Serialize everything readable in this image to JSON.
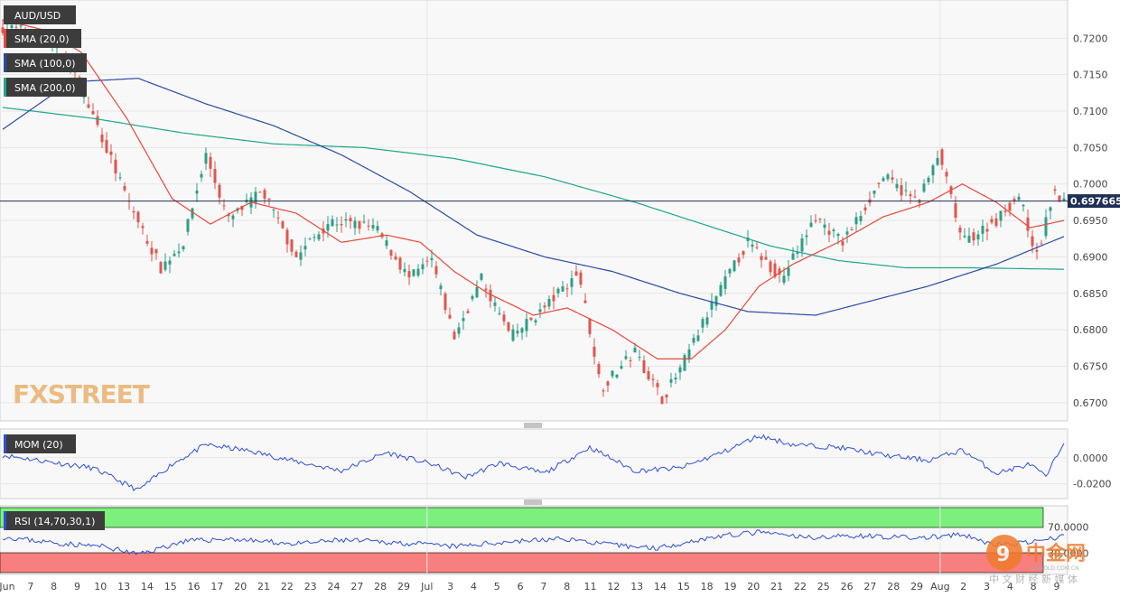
{
  "colors": {
    "background": "#f8f8f8",
    "grid": "#e6e6e6",
    "bull": "#2e9e86",
    "bear": "#e0554d",
    "sma20": "#e8473b",
    "sma100": "#2a4aa6",
    "sma200": "#1fa68a",
    "line": "#2f4fd8",
    "price_tag_bg": "#1f2f55",
    "rsi_over": "#7cf07c",
    "rsi_under": "#f77f7f"
  },
  "chart_data": [
    {
      "type": "candlestick",
      "symbol": "AUD/USD",
      "legend": [
        "AUD/USD",
        "SMA (20,0)",
        "SMA (100,0)",
        "SMA (200,0)"
      ],
      "y_ticks": [
        "0.7200",
        "0.7150",
        "0.7100",
        "0.7050",
        "0.7000",
        "0.6950",
        "0.6900",
        "0.6850",
        "0.6800",
        "0.6750",
        "0.6700"
      ],
      "ylim": [
        0.668,
        0.7245
      ],
      "last_price": "0.697665",
      "last_price_value": 0.697665,
      "x_labels": [
        "Jun",
        "7",
        "8",
        "9",
        "10",
        "13",
        "14",
        "15",
        "16",
        "17",
        "20",
        "21",
        "22",
        "23",
        "24",
        "27",
        "28",
        "29",
        "Jul",
        "3",
        "4",
        "5",
        "6",
        "7",
        "8",
        "11",
        "12",
        "13",
        "14",
        "15",
        "18",
        "19",
        "20",
        "21",
        "22",
        "25",
        "26",
        "27",
        "28",
        "29",
        "Aug",
        "2",
        "3",
        "4",
        "8",
        "9"
      ],
      "price_path": [
        {
          "i": 0,
          "v": 0.7215
        },
        {
          "i": 18,
          "v": 0.7205
        },
        {
          "i": 30,
          "v": 0.716
        },
        {
          "i": 42,
          "v": 0.708
        },
        {
          "i": 55,
          "v": 0.698
        },
        {
          "i": 70,
          "v": 0.6885
        },
        {
          "i": 80,
          "v": 0.692
        },
        {
          "i": 90,
          "v": 0.704
        },
        {
          "i": 100,
          "v": 0.695
        },
        {
          "i": 115,
          "v": 0.699
        },
        {
          "i": 130,
          "v": 0.69
        },
        {
          "i": 145,
          "v": 0.695
        },
        {
          "i": 165,
          "v": 0.694
        },
        {
          "i": 180,
          "v": 0.687
        },
        {
          "i": 190,
          "v": 0.6895
        },
        {
          "i": 200,
          "v": 0.679
        },
        {
          "i": 212,
          "v": 0.687
        },
        {
          "i": 225,
          "v": 0.679
        },
        {
          "i": 240,
          "v": 0.683
        },
        {
          "i": 255,
          "v": 0.688
        },
        {
          "i": 265,
          "v": 0.672
        },
        {
          "i": 280,
          "v": 0.677
        },
        {
          "i": 292,
          "v": 0.6705
        },
        {
          "i": 300,
          "v": 0.6745
        },
        {
          "i": 315,
          "v": 0.684
        },
        {
          "i": 330,
          "v": 0.692
        },
        {
          "i": 345,
          "v": 0.687
        },
        {
          "i": 360,
          "v": 0.6955
        },
        {
          "i": 372,
          "v": 0.692
        },
        {
          "i": 390,
          "v": 0.701
        },
        {
          "i": 405,
          "v": 0.6975
        },
        {
          "i": 415,
          "v": 0.704
        },
        {
          "i": 425,
          "v": 0.692
        },
        {
          "i": 440,
          "v": 0.695
        },
        {
          "i": 450,
          "v": 0.6985
        },
        {
          "i": 458,
          "v": 0.69
        },
        {
          "i": 465,
          "v": 0.6985
        },
        {
          "i": 470,
          "v": 0.6977
        }
      ],
      "sma20_path": [
        {
          "i": 0,
          "v": 0.7225
        },
        {
          "i": 20,
          "v": 0.721
        },
        {
          "i": 35,
          "v": 0.718
        },
        {
          "i": 55,
          "v": 0.709
        },
        {
          "i": 75,
          "v": 0.698
        },
        {
          "i": 92,
          "v": 0.6945
        },
        {
          "i": 110,
          "v": 0.6975
        },
        {
          "i": 130,
          "v": 0.696
        },
        {
          "i": 150,
          "v": 0.692
        },
        {
          "i": 170,
          "v": 0.693
        },
        {
          "i": 185,
          "v": 0.692
        },
        {
          "i": 200,
          "v": 0.688
        },
        {
          "i": 215,
          "v": 0.685
        },
        {
          "i": 235,
          "v": 0.682
        },
        {
          "i": 250,
          "v": 0.683
        },
        {
          "i": 270,
          "v": 0.68
        },
        {
          "i": 290,
          "v": 0.676
        },
        {
          "i": 305,
          "v": 0.676
        },
        {
          "i": 320,
          "v": 0.68
        },
        {
          "i": 335,
          "v": 0.686
        },
        {
          "i": 350,
          "v": 0.689
        },
        {
          "i": 370,
          "v": 0.692
        },
        {
          "i": 390,
          "v": 0.6955
        },
        {
          "i": 410,
          "v": 0.6975
        },
        {
          "i": 425,
          "v": 0.7
        },
        {
          "i": 440,
          "v": 0.6975
        },
        {
          "i": 455,
          "v": 0.694
        },
        {
          "i": 470,
          "v": 0.695
        }
      ],
      "sma100_path": [
        {
          "i": 0,
          "v": 0.7075
        },
        {
          "i": 30,
          "v": 0.714
        },
        {
          "i": 60,
          "v": 0.7145
        },
        {
          "i": 90,
          "v": 0.711
        },
        {
          "i": 120,
          "v": 0.708
        },
        {
          "i": 150,
          "v": 0.704
        },
        {
          "i": 180,
          "v": 0.699
        },
        {
          "i": 210,
          "v": 0.693
        },
        {
          "i": 240,
          "v": 0.69
        },
        {
          "i": 270,
          "v": 0.688
        },
        {
          "i": 300,
          "v": 0.685
        },
        {
          "i": 330,
          "v": 0.6825
        },
        {
          "i": 360,
          "v": 0.682
        },
        {
          "i": 385,
          "v": 0.684
        },
        {
          "i": 410,
          "v": 0.686
        },
        {
          "i": 440,
          "v": 0.689
        },
        {
          "i": 470,
          "v": 0.6928
        }
      ],
      "sma200_path": [
        {
          "i": 0,
          "v": 0.7105
        },
        {
          "i": 40,
          "v": 0.709
        },
        {
          "i": 80,
          "v": 0.707
        },
        {
          "i": 120,
          "v": 0.7055
        },
        {
          "i": 160,
          "v": 0.705
        },
        {
          "i": 200,
          "v": 0.7035
        },
        {
          "i": 240,
          "v": 0.701
        },
        {
          "i": 280,
          "v": 0.6975
        },
        {
          "i": 310,
          "v": 0.6945
        },
        {
          "i": 340,
          "v": 0.6915
        },
        {
          "i": 370,
          "v": 0.6895
        },
        {
          "i": 400,
          "v": 0.6885
        },
        {
          "i": 430,
          "v": 0.6885
        },
        {
          "i": 470,
          "v": 0.6883
        }
      ]
    },
    {
      "type": "line",
      "name": "MOM (20)",
      "y_ticks": [
        "0.0000",
        "-0.0200"
      ],
      "ylim": [
        -0.03,
        0.02
      ],
      "path": [
        {
          "i": 0,
          "v": 0.002
        },
        {
          "i": 20,
          "v": -0.003
        },
        {
          "i": 40,
          "v": -0.008
        },
        {
          "i": 60,
          "v": -0.025
        },
        {
          "i": 75,
          "v": -0.005
        },
        {
          "i": 90,
          "v": 0.01
        },
        {
          "i": 110,
          "v": 0.005
        },
        {
          "i": 130,
          "v": -0.003
        },
        {
          "i": 150,
          "v": -0.01
        },
        {
          "i": 170,
          "v": 0.004
        },
        {
          "i": 190,
          "v": -0.005
        },
        {
          "i": 205,
          "v": -0.015
        },
        {
          "i": 220,
          "v": -0.004
        },
        {
          "i": 240,
          "v": -0.012
        },
        {
          "i": 260,
          "v": 0.008
        },
        {
          "i": 280,
          "v": -0.01
        },
        {
          "i": 300,
          "v": -0.008
        },
        {
          "i": 320,
          "v": 0.005
        },
        {
          "i": 335,
          "v": 0.017
        },
        {
          "i": 350,
          "v": 0.01
        },
        {
          "i": 370,
          "v": 0.008
        },
        {
          "i": 390,
          "v": 0.002
        },
        {
          "i": 410,
          "v": -0.002
        },
        {
          "i": 425,
          "v": 0.006
        },
        {
          "i": 440,
          "v": -0.012
        },
        {
          "i": 455,
          "v": -0.005
        },
        {
          "i": 462,
          "v": -0.015
        },
        {
          "i": 470,
          "v": 0.012
        }
      ]
    },
    {
      "type": "line",
      "name": "RSI (14,70,30,1)",
      "y_ticks": [
        "70.0000",
        "30.0000"
      ],
      "ylim": [
        0,
        100
      ],
      "overbought": 70,
      "oversold": 30,
      "path": [
        {
          "i": 0,
          "v": 55
        },
        {
          "i": 25,
          "v": 45
        },
        {
          "i": 45,
          "v": 40
        },
        {
          "i": 60,
          "v": 28
        },
        {
          "i": 80,
          "v": 48
        },
        {
          "i": 100,
          "v": 52
        },
        {
          "i": 130,
          "v": 44
        },
        {
          "i": 150,
          "v": 50
        },
        {
          "i": 175,
          "v": 46
        },
        {
          "i": 200,
          "v": 40
        },
        {
          "i": 225,
          "v": 48
        },
        {
          "i": 250,
          "v": 52
        },
        {
          "i": 270,
          "v": 42
        },
        {
          "i": 290,
          "v": 38
        },
        {
          "i": 315,
          "v": 55
        },
        {
          "i": 335,
          "v": 62
        },
        {
          "i": 355,
          "v": 54
        },
        {
          "i": 380,
          "v": 57
        },
        {
          "i": 405,
          "v": 53
        },
        {
          "i": 425,
          "v": 58
        },
        {
          "i": 440,
          "v": 42
        },
        {
          "i": 460,
          "v": 48
        },
        {
          "i": 470,
          "v": 57
        }
      ]
    }
  ],
  "watermark": {
    "brand": "FXSTREET"
  },
  "logo": {
    "chars": "中金网",
    "sub": "中 文 财 经 新 媒 体",
    "url": "CNGOLD.COM.CN"
  }
}
